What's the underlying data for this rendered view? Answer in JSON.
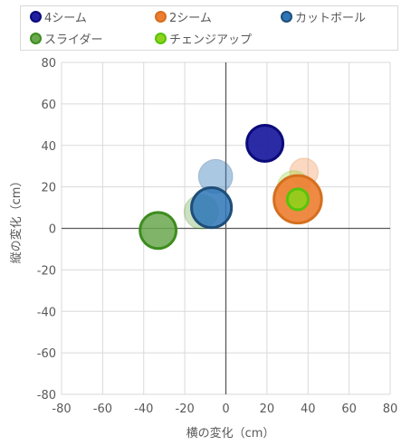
{
  "chart_data": {
    "type": "scatter",
    "xlabel": "横の変化（cm）",
    "ylabel": "縦の変化（cm）",
    "xlim": [
      -80,
      80
    ],
    "ylim": [
      -80,
      80
    ],
    "xticks": [
      "-80",
      "-60",
      "-40",
      "-20",
      "0",
      "20",
      "40",
      "60",
      "80"
    ],
    "yticks": [
      "80",
      "60",
      "40",
      "20",
      "0",
      "-20",
      "-40",
      "-60",
      "-80"
    ],
    "grid": true,
    "legend_position": "top",
    "series": [
      {
        "name": "4シーム",
        "fill": "#1f1fa0",
        "stroke": "#0a0a7a",
        "points": [
          {
            "x": 19,
            "y": 41,
            "size": 1.0,
            "alpha": 0.45
          },
          {
            "x": 19,
            "y": 41,
            "size": 0.95,
            "alpha": 0.9
          }
        ]
      },
      {
        "name": "2シーム",
        "fill": "#ed7d31",
        "stroke": "#d56f1e",
        "points": [
          {
            "x": 38,
            "y": 27,
            "size": 0.75,
            "alpha": 0.3
          },
          {
            "x": 35,
            "y": 14,
            "size": 1.25,
            "alpha": 0.9
          }
        ]
      },
      {
        "name": "カットボール",
        "fill": "#2e75b6",
        "stroke": "#1f4e79",
        "points": [
          {
            "x": -5,
            "y": 25,
            "size": 0.9,
            "alpha": 0.4
          },
          {
            "x": -7,
            "y": 10,
            "size": 1.05,
            "alpha": 0.85
          }
        ]
      },
      {
        "name": "スライダー",
        "fill": "#6aa84f",
        "stroke": "#3c8d1e",
        "points": [
          {
            "x": -12,
            "y": 8,
            "size": 0.9,
            "alpha": 0.35
          },
          {
            "x": -33,
            "y": -1,
            "size": 0.95,
            "alpha": 0.85
          }
        ]
      },
      {
        "name": "チェンジアップ",
        "fill": "#8fd11b",
        "stroke": "#56c40a",
        "points": [
          {
            "x": 33,
            "y": 20,
            "size": 0.85,
            "alpha": 0.3
          },
          {
            "x": 35,
            "y": 14,
            "size": 0.55,
            "alpha": 0.9
          }
        ]
      }
    ]
  }
}
